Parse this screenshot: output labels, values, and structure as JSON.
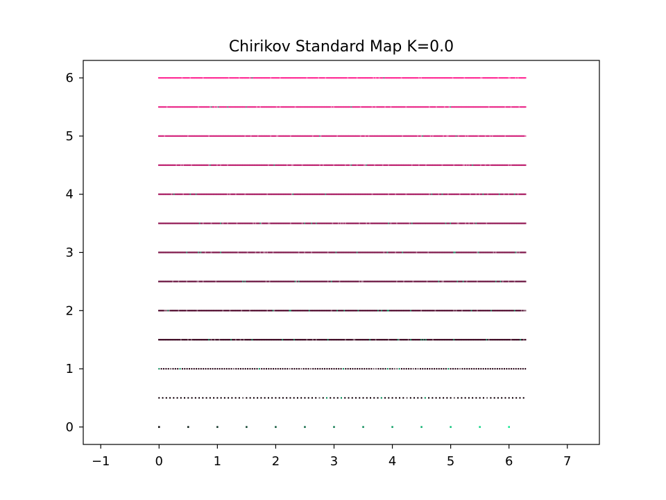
{
  "chart_data": {
    "type": "scatter",
    "title": "Chirikov Standard Map K=0.0",
    "xlabel": "",
    "ylabel": "",
    "xlim": [
      -1.3,
      7.55
    ],
    "ylim": [
      -0.3,
      6.3
    ],
    "x_ticks": [
      -1,
      0,
      1,
      2,
      3,
      4,
      5,
      6,
      7
    ],
    "y_ticks": [
      0,
      1,
      2,
      3,
      4,
      5,
      6
    ],
    "x_range": [
      0,
      6.283
    ],
    "levels": [
      0,
      0.5,
      1,
      1.5,
      2,
      2.5,
      3,
      3.5,
      4,
      4.5,
      5,
      5.5,
      6
    ],
    "color_map": [
      "#000000",
      "#00e68a",
      "#ff3399"
    ],
    "grid": false,
    "legend": "none"
  }
}
